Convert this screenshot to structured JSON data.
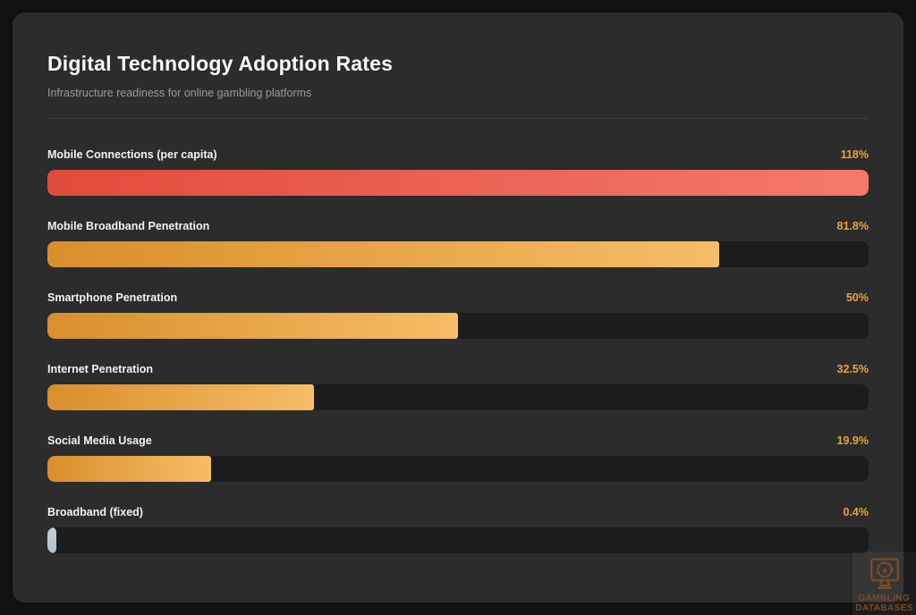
{
  "page": {
    "title": "Digital Technology Adoption Rates",
    "subtitle": "Infrastructure readiness for online gambling platforms"
  },
  "chart_data": {
    "type": "bar",
    "orientation": "horizontal",
    "title": "Digital Technology Adoption Rates",
    "subtitle": "Infrastructure readiness for online gambling platforms",
    "value_unit": "%",
    "track_range": [
      0,
      100
    ],
    "legend": "none",
    "grid": false,
    "categories": [
      "Mobile Connections (per capita)",
      "Mobile Broadband Penetration",
      "Smartphone Penetration",
      "Internet Penetration",
      "Social Media Usage",
      "Broadband (fixed)"
    ],
    "values": [
      118,
      81.8,
      50,
      32.5,
      19.9,
      0.4
    ],
    "rows": [
      {
        "label": "Mobile Connections (per capita)",
        "value": 118,
        "value_label": "118%",
        "style": "red"
      },
      {
        "label": "Mobile Broadband Penetration",
        "value": 81.8,
        "value_label": "81.8%",
        "style": "orange"
      },
      {
        "label": "Smartphone Penetration",
        "value": 50,
        "value_label": "50%",
        "style": "orange"
      },
      {
        "label": "Internet Penetration",
        "value": 32.5,
        "value_label": "32.5%",
        "style": "orange"
      },
      {
        "label": "Social Media Usage",
        "value": 19.9,
        "value_label": "19.9%",
        "style": "orange"
      },
      {
        "label": "Broadband (fixed)",
        "value": 0.4,
        "value_label": "0.4%",
        "style": "gray"
      }
    ]
  },
  "watermark": {
    "line1": "GAMBLING",
    "line2": "DATABASES",
    "icon": "monitor-casino-chip-icon"
  },
  "colors": {
    "background": "#111111",
    "card": "#2c2c2c",
    "track": "#1c1c1c",
    "label_text": "#f2f2f2",
    "value_text": "#e9a33c",
    "subtitle_text": "#9b9b9b",
    "divider": "#3e3e3e",
    "bar_red_start": "#e14b3b",
    "bar_red_end": "#f5796b",
    "bar_orange_start": "#d98e2b",
    "bar_orange_end": "#f6bd66",
    "bar_gray": "#b8c2ca",
    "watermark_color": "#7d4a28"
  }
}
